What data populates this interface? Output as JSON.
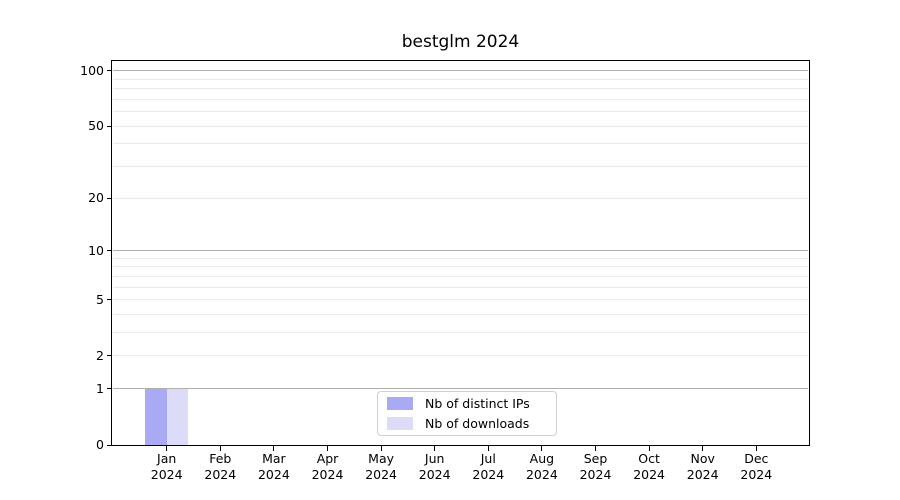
{
  "window": {
    "background": "#ffffff"
  },
  "chart_data": {
    "type": "bar",
    "title": "bestglm 2024",
    "categories": [
      "Jan\n2024",
      "Feb\n2024",
      "Mar\n2024",
      "Apr\n2024",
      "May\n2024",
      "Jun\n2024",
      "Jul\n2024",
      "Aug\n2024",
      "Sep\n2024",
      "Oct\n2024",
      "Nov\n2024",
      "Dec\n2024"
    ],
    "series": [
      {
        "name": "Nb of distinct IPs",
        "color": "#aaaaf4",
        "values": [
          1,
          0,
          0,
          0,
          0,
          0,
          0,
          0,
          0,
          0,
          0,
          0
        ]
      },
      {
        "name": "Nb of downloads",
        "color": "#dcdcf8",
        "values": [
          1,
          0,
          0,
          0,
          0,
          0,
          0,
          0,
          0,
          0,
          0,
          0
        ]
      }
    ],
    "xlabel": "",
    "ylabel": "",
    "yscale": "log1p",
    "ylim": [
      0,
      113
    ],
    "yticks": [
      0,
      1,
      2,
      5,
      10,
      20,
      50,
      100
    ],
    "grid": {
      "orientation": "horizontal",
      "major_color": "#b0b0b0",
      "minor_color": "#e9e9e9",
      "major_at": [
        1,
        10,
        100
      ]
    },
    "legend_position": "inside lower center",
    "spine_color": "#000000"
  }
}
